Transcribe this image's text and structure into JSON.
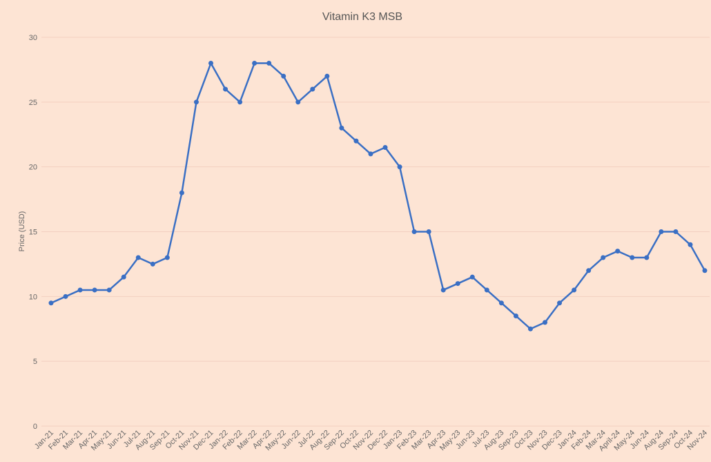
{
  "chart_data": {
    "type": "line",
    "title": "Vitamin K3 MSB",
    "y_label": "Price (USD)",
    "categories": [
      "Jan-21",
      "Feb-21",
      "Mar-21",
      "Apr-21",
      "May-21",
      "Jun-21",
      "Jul-21",
      "Aug-21",
      "Sep-21",
      "Oct-21",
      "Nov-21",
      "Dec-21",
      "Jan-22",
      "Feb-22",
      "Mar-22",
      "Apr-22",
      "May-22",
      "Jun-22",
      "Jul-22",
      "Aug-22",
      "Sep-22",
      "Oct-22",
      "Nov-22",
      "Dec-22",
      "Jan-23",
      "Feb-23",
      "Mar-23",
      "Apr-23",
      "May-23",
      "Jun-23",
      "Jul-23",
      "Aug-23",
      "Sep-23",
      "Oct-23",
      "Nov-23",
      "Dec-23",
      "Jan-24",
      "Feb-24",
      "Mar-24",
      "April-24",
      "May-24",
      "Jun-24",
      "Aug-24",
      "Sep-24",
      "Oct-24",
      "Nov-24"
    ],
    "series": [
      {
        "name": "Price",
        "color": "#3a6fc4",
        "values": [
          9.5,
          10,
          10.5,
          10.5,
          10.5,
          11.5,
          13,
          12.5,
          13,
          18,
          25,
          28,
          26,
          25,
          28,
          28,
          27,
          25,
          26,
          27,
          23,
          22,
          21,
          21.5,
          20,
          15,
          15,
          10.5,
          11,
          11.5,
          10.5,
          9.5,
          8.5,
          7.5,
          8,
          9.5,
          10.5,
          12,
          13,
          13.5,
          13,
          13,
          15,
          15,
          14,
          12
        ]
      }
    ],
    "ylim": [
      0,
      30
    ],
    "yticks": [
      0,
      5,
      10,
      15,
      20,
      25,
      30
    ],
    "grid": true
  }
}
